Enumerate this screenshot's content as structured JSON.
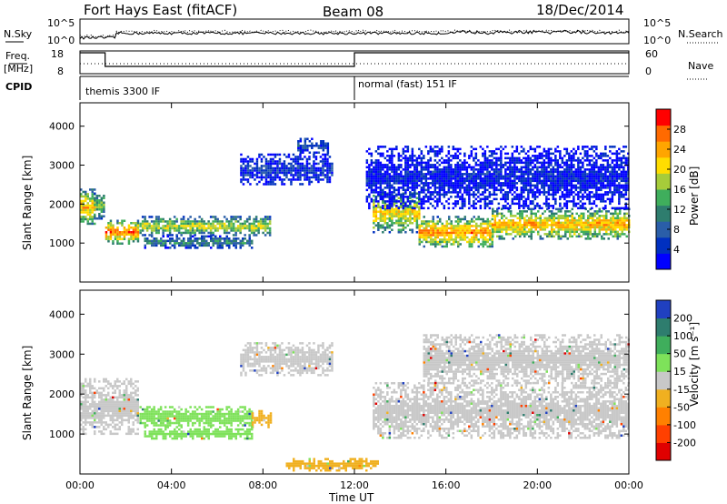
{
  "header": {
    "title": "Fort Hays East (fitACF)",
    "beam": "Beam 08",
    "date": "18/Dec/2014"
  },
  "side_labels": {
    "nsky": "N.Sky",
    "nsearch": "N.Search",
    "freq_line1": "Freq.",
    "freq_line2": "[MHz]",
    "nave": "Nave",
    "cpid": "CPID"
  },
  "small_panels": {
    "nsky_ticks": [
      "10^5",
      "10^0"
    ],
    "nsearch_ticks": [
      "10^5",
      "10^0"
    ],
    "freq_ticks": [
      "18",
      "8"
    ],
    "nave_ticks": [
      "60",
      "0"
    ]
  },
  "cpid_labels": [
    {
      "label": "themis 3300 IF",
      "start_hour": 0
    },
    {
      "label": "normal (fast) 151 IF",
      "start_hour": 12.0
    }
  ],
  "power_colorbar": {
    "label": "Power [dB]",
    "ticks": [
      "4",
      "8",
      "12",
      "16",
      "20",
      "24",
      "28"
    ],
    "colors": [
      "#0000ff",
      "#0030c0",
      "#2a5ea8",
      "#2e7d6e",
      "#3fae5c",
      "#a6cc3a",
      "#ffdd00",
      "#ffa500",
      "#ff6a00",
      "#ff0000"
    ]
  },
  "velocity_colorbar": {
    "label": "Velocity [m s⁻¹]",
    "ticks": [
      "200",
      "100",
      "50",
      "15",
      "-15",
      "-50",
      "-100",
      "-200"
    ],
    "colors": [
      "#2040c0",
      "#2e7d6e",
      "#3fae5c",
      "#7ee25a",
      "#c8c8c8",
      "#f0b020",
      "#ff8000",
      "#ff4000",
      "#e00000"
    ]
  },
  "xaxis": {
    "label": "Time UT",
    "ticks": [
      "00:00",
      "04:00",
      "08:00",
      "12:00",
      "16:00",
      "20:00",
      "00:00"
    ]
  },
  "chart_data": [
    {
      "type": "heatmap",
      "name": "power",
      "xlabel": "Time UT",
      "ylabel": "Slant Range [km]",
      "xlim_hours": [
        0,
        24
      ],
      "ylim": [
        0,
        4600
      ],
      "yticks": [
        1000,
        2000,
        3000,
        4000
      ],
      "regions": [
        {
          "t0": 0.0,
          "t1": 0.6,
          "r0": 1500,
          "r1": 2400,
          "level": 0.75
        },
        {
          "t0": 0.6,
          "t1": 1.0,
          "r0": 1650,
          "r1": 2300,
          "level": 0.55
        },
        {
          "t0": 1.1,
          "t1": 2.5,
          "r0": 1000,
          "r1": 1600,
          "level": 0.85
        },
        {
          "t0": 2.6,
          "t1": 8.3,
          "r0": 1200,
          "r1": 1700,
          "level": 0.6
        },
        {
          "t0": 2.8,
          "t1": 7.5,
          "r0": 900,
          "r1": 1200,
          "level": 0.35
        },
        {
          "t0": 7.0,
          "t1": 11.0,
          "r0": 2500,
          "r1": 3300,
          "level": 0.15
        },
        {
          "t0": 9.5,
          "t1": 10.8,
          "r0": 3300,
          "r1": 3700,
          "level": 0.2
        },
        {
          "t0": 12.8,
          "t1": 14.8,
          "r0": 1300,
          "r1": 2300,
          "level": 0.7
        },
        {
          "t0": 14.8,
          "t1": 18.0,
          "r0": 900,
          "r1": 1700,
          "level": 0.8
        },
        {
          "t0": 18.0,
          "t1": 24.0,
          "r0": 1100,
          "r1": 1900,
          "level": 0.75
        },
        {
          "t0": 12.5,
          "t1": 24.0,
          "r0": 1900,
          "r1": 3500,
          "level": 0.1
        }
      ]
    },
    {
      "type": "heatmap",
      "name": "velocity",
      "xlabel": "Time UT",
      "ylabel": "Slant Range [km]",
      "xlim_hours": [
        0,
        24
      ],
      "ylim": [
        0,
        4600
      ],
      "yticks": [
        1000,
        2000,
        3000,
        4000
      ],
      "regions": [
        {
          "t0": 0.0,
          "t1": 2.5,
          "r0": 1000,
          "r1": 2400,
          "v": 0
        },
        {
          "t0": 2.6,
          "t1": 7.5,
          "r0": 1200,
          "r1": 1700,
          "v": 40
        },
        {
          "t0": 7.5,
          "t1": 8.3,
          "r0": 1200,
          "r1": 1600,
          "v": -30
        },
        {
          "t0": 2.8,
          "t1": 7.5,
          "r0": 900,
          "r1": 1200,
          "v": 40
        },
        {
          "t0": 7.0,
          "t1": 11.0,
          "r0": 2500,
          "r1": 3300,
          "v": 0
        },
        {
          "t0": 12.8,
          "t1": 24.0,
          "r0": 900,
          "r1": 2300,
          "v": 0
        },
        {
          "t0": 9.0,
          "t1": 13.0,
          "r0": 100,
          "r1": 400,
          "v": -40
        },
        {
          "t0": 15.0,
          "t1": 24.0,
          "r0": 2300,
          "r1": 3500,
          "v": 0
        }
      ]
    }
  ]
}
